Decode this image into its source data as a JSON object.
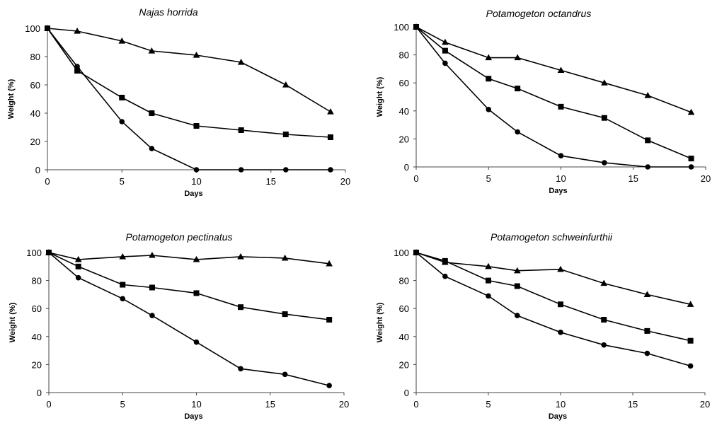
{
  "chart_data": [
    {
      "type": "line",
      "title": "Najas horrida",
      "xlabel": "Days",
      "ylabel": "Weight (%)",
      "xlim": [
        0,
        20
      ],
      "ylim": [
        0,
        100
      ],
      "xticks": [
        0,
        5,
        10,
        15,
        20
      ],
      "yticks": [
        0,
        20,
        40,
        60,
        80,
        100
      ],
      "grid": false,
      "series": [
        {
          "marker": "triangle",
          "x": [
            0,
            2,
            5,
            7,
            10,
            13,
            16,
            19
          ],
          "y": [
            100,
            98,
            91,
            84,
            81,
            76,
            60,
            41
          ]
        },
        {
          "marker": "square",
          "x": [
            0,
            2,
            5,
            7,
            10,
            13,
            16,
            19
          ],
          "y": [
            100,
            70,
            51,
            40,
            31,
            28,
            25,
            23
          ]
        },
        {
          "marker": "circle",
          "x": [
            0,
            2,
            5,
            7,
            10,
            13,
            16,
            19
          ],
          "y": [
            100,
            73,
            34,
            15,
            0,
            0,
            0,
            0
          ]
        }
      ]
    },
    {
      "type": "line",
      "title": "Potamogeton octandrus",
      "xlabel": "Days",
      "ylabel": "Weight (%)",
      "xlim": [
        0,
        20
      ],
      "ylim": [
        0,
        100
      ],
      "xticks": [
        0,
        5,
        10,
        15,
        20
      ],
      "yticks": [
        0,
        20,
        40,
        60,
        80,
        100
      ],
      "grid": false,
      "series": [
        {
          "marker": "triangle",
          "x": [
            0,
            2,
            5,
            7,
            10,
            13,
            16,
            19
          ],
          "y": [
            100,
            89,
            78,
            78,
            69,
            60,
            51,
            39
          ]
        },
        {
          "marker": "square",
          "x": [
            0,
            2,
            5,
            7,
            10,
            13,
            16,
            19
          ],
          "y": [
            100,
            83,
            63,
            56,
            43,
            35,
            19,
            6
          ]
        },
        {
          "marker": "circle",
          "x": [
            0,
            2,
            5,
            7,
            10,
            13,
            16,
            19
          ],
          "y": [
            100,
            74,
            41,
            25,
            8,
            3,
            0,
            0
          ]
        }
      ]
    },
    {
      "type": "line",
      "title": "Potamogeton pectinatus",
      "xlabel": "Days",
      "ylabel": "Weight (%)",
      "xlim": [
        0,
        20
      ],
      "ylim": [
        0,
        100
      ],
      "xticks": [
        0,
        5,
        10,
        15,
        20
      ],
      "yticks": [
        0,
        20,
        40,
        60,
        80,
        100
      ],
      "grid": false,
      "series": [
        {
          "marker": "triangle",
          "x": [
            0,
            2,
            5,
            7,
            10,
            13,
            16,
            19
          ],
          "y": [
            100,
            95,
            97,
            98,
            95,
            97,
            96,
            92
          ]
        },
        {
          "marker": "square",
          "x": [
            0,
            2,
            5,
            7,
            10,
            13,
            16,
            19
          ],
          "y": [
            100,
            90,
            77,
            75,
            71,
            61,
            56,
            52
          ]
        },
        {
          "marker": "circle",
          "x": [
            0,
            2,
            5,
            7,
            10,
            13,
            16,
            19
          ],
          "y": [
            100,
            82,
            67,
            55,
            36,
            17,
            13,
            5
          ]
        }
      ]
    },
    {
      "type": "line",
      "title": "Potamogeton schweinfurthii",
      "xlabel": "Days",
      "ylabel": "Weight (%)",
      "xlim": [
        0,
        20
      ],
      "ylim": [
        0,
        100
      ],
      "xticks": [
        0,
        5,
        10,
        15,
        20
      ],
      "yticks": [
        0,
        20,
        40,
        60,
        80,
        100
      ],
      "grid": false,
      "series": [
        {
          "marker": "triangle",
          "x": [
            0,
            2,
            5,
            7,
            10,
            13,
            16,
            19
          ],
          "y": [
            100,
            93,
            90,
            87,
            88,
            78,
            70,
            63
          ]
        },
        {
          "marker": "square",
          "x": [
            0,
            2,
            5,
            7,
            10,
            13,
            16,
            19
          ],
          "y": [
            100,
            94,
            80,
            76,
            63,
            52,
            44,
            37
          ]
        },
        {
          "marker": "circle",
          "x": [
            0,
            2,
            5,
            7,
            10,
            13,
            16,
            19
          ],
          "y": [
            100,
            83,
            69,
            55,
            43,
            34,
            28,
            19
          ]
        }
      ]
    }
  ]
}
